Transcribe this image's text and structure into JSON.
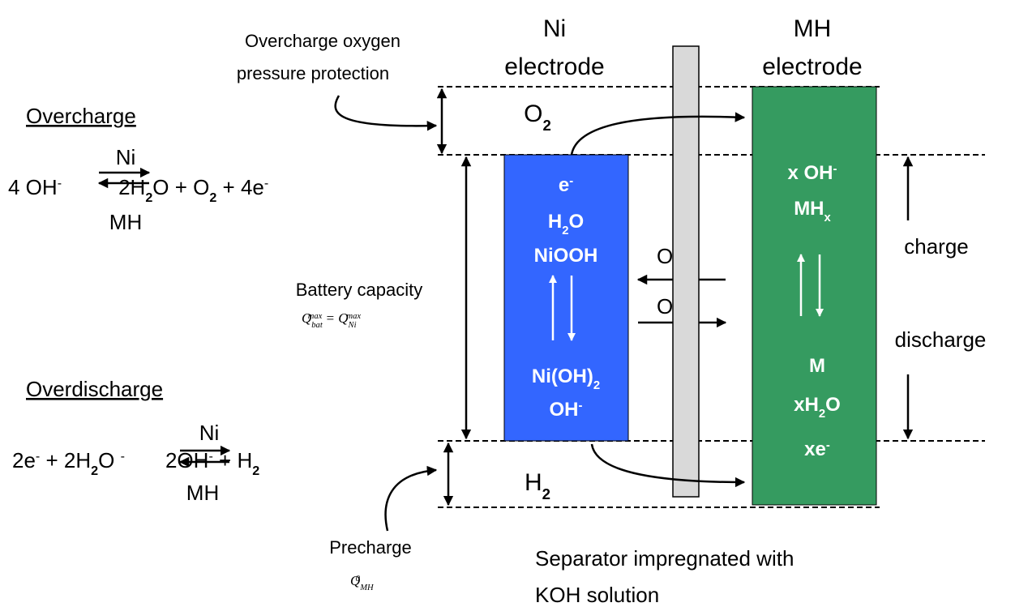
{
  "annotations": {
    "oxygen_protection": [
      "Overcharge oxygen",
      "pressure protection"
    ],
    "battery_capacity": {
      "label": "Battery capacity",
      "formula": [
        "Q",
        "bat",
        "max",
        " = Q",
        "Ni",
        "max"
      ]
    },
    "precharge": {
      "label": "Precharge",
      "formula": [
        "Q",
        "MH",
        "0"
      ]
    },
    "separator": [
      "Separator impregnated with",
      "KOH solution"
    ],
    "charge": "charge",
    "discharge": "discharge"
  },
  "overcharge": {
    "title": "Overcharge",
    "equation": [
      "4 OH",
      "-",
      "2H",
      "2",
      "O + O",
      "2",
      " + 4e",
      "-"
    ],
    "above_arrow": "Ni",
    "below_arrow": "MH"
  },
  "overdischarge": {
    "title": "Overdischarge",
    "equation": [
      "2e",
      "-",
      " + 2H",
      "2",
      "O ",
      "-",
      "2OH",
      "-",
      " + H",
      "2"
    ],
    "above_arrow": "Ni",
    "below_arrow": "MH"
  },
  "gases": {
    "oxygen": [
      "O",
      "2"
    ],
    "hydrogen": [
      "H",
      "2"
    ]
  },
  "ni_electrode": {
    "title": [
      "Ni",
      "electrode"
    ],
    "charged": [
      [
        "e",
        "-"
      ],
      [
        "H",
        "2",
        "O"
      ],
      [
        "NiOOH"
      ]
    ],
    "discharged": [
      [
        "Ni(OH)",
        "2"
      ],
      [
        "OH",
        "-"
      ]
    ]
  },
  "mh_electrode": {
    "title": [
      "MH",
      "electrode"
    ],
    "charged": [
      [
        "x OH",
        "-"
      ],
      [
        "MH",
        "x"
      ]
    ],
    "discharged": [
      [
        "M"
      ],
      [
        "xH",
        "2",
        "O"
      ],
      [
        "xe",
        "-"
      ]
    ]
  },
  "ion_transport": [
    [
      "OH",
      "-"
    ],
    [
      "OH",
      "-"
    ]
  ]
}
